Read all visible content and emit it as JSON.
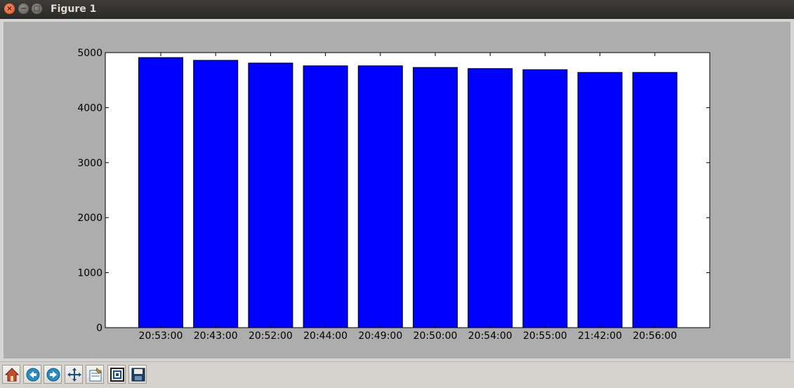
{
  "window": {
    "title": "Figure 1",
    "close_glyph": "×",
    "min_glyph": "−",
    "max_glyph": "□"
  },
  "toolbar": {
    "buttons": [
      {
        "name": "home-icon"
      },
      {
        "name": "back-icon"
      },
      {
        "name": "forward-icon"
      },
      {
        "name": "pan-icon"
      },
      {
        "name": "configure-subplots-icon"
      },
      {
        "name": "zoom-rect-icon"
      },
      {
        "name": "save-icon"
      }
    ]
  },
  "chart_data": {
    "type": "bar",
    "categories": [
      "20:53:00",
      "20:43:00",
      "20:52:00",
      "20:44:00",
      "20:49:00",
      "20:50:00",
      "20:54:00",
      "20:55:00",
      "21:42:00",
      "20:56:00"
    ],
    "values": [
      4910,
      4860,
      4810,
      4760,
      4760,
      4730,
      4710,
      4690,
      4640,
      4640
    ],
    "ylim": [
      0,
      5000
    ],
    "yticks": [
      0,
      1000,
      2000,
      3000,
      4000,
      5000
    ],
    "bar_color": "#0000ff",
    "grid": false,
    "legend": "none"
  }
}
